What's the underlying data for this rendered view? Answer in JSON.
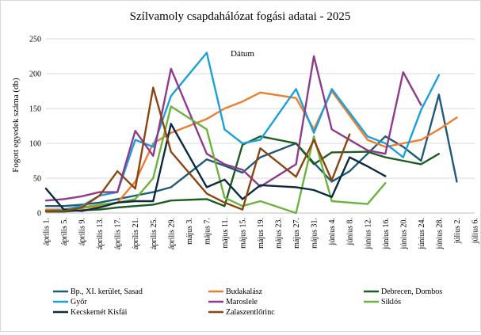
{
  "chart_data": {
    "type": "line",
    "title": "Szílvamoly csapdahálózat fogási adatai - 2025",
    "xlabel": "Dátum",
    "ylabel": "Fogott egyedek száma (db)",
    "ylim": [
      0,
      250
    ],
    "yticks": [
      0,
      50,
      100,
      150,
      200,
      250
    ],
    "grid": true,
    "legend_position": "bottom",
    "x": [
      "április 1.",
      "április 5.",
      "április 9.",
      "április 13.",
      "április 17.",
      "április 21.",
      "április 25.",
      "április 29.",
      "május 3.",
      "május 7.",
      "május 11.",
      "május 15.",
      "május 19.",
      "május 23.",
      "május 27.",
      "május 31.",
      "június 4.",
      "június 8.",
      "június 12.",
      "június 16.",
      "június 20.",
      "június 24.",
      "június 28.",
      "július 2.",
      "július 6."
    ],
    "series": [
      {
        "name": "Bp., XI. kerület, Sasad",
        "color": "#1f5a7a",
        "points": [
          [
            0,
            10
          ],
          [
            1,
            10
          ],
          [
            2,
            12
          ],
          [
            3,
            15
          ],
          [
            4,
            20
          ],
          [
            5,
            25
          ],
          [
            6,
            30
          ],
          [
            7,
            37
          ],
          [
            9,
            77
          ],
          [
            10,
            68
          ],
          [
            11,
            58
          ],
          [
            12,
            80
          ],
          [
            14,
            100
          ],
          [
            15,
            72
          ],
          [
            16,
            45
          ],
          [
            17,
            60
          ],
          [
            19,
            110
          ],
          [
            20,
            95
          ],
          [
            21,
            75
          ],
          [
            22,
            170
          ],
          [
            23,
            45
          ]
        ]
      },
      {
        "name": "Budakalász",
        "color": "#ed7d31",
        "points": [
          [
            0,
            5
          ],
          [
            1,
            5
          ],
          [
            2,
            7
          ],
          [
            3,
            10
          ],
          [
            4,
            15
          ],
          [
            5,
            45
          ],
          [
            6,
            100
          ],
          [
            7,
            115
          ],
          [
            9,
            135
          ],
          [
            10,
            150
          ],
          [
            11,
            160
          ],
          [
            12,
            173
          ],
          [
            14,
            165
          ],
          [
            15,
            120
          ],
          [
            16,
            175
          ],
          [
            18,
            105
          ],
          [
            19,
            95
          ],
          [
            20,
            100
          ],
          [
            21,
            105
          ],
          [
            22,
            120
          ],
          [
            23,
            137
          ]
        ]
      },
      {
        "name": "Debrecen, Dombos",
        "color": "#1b5e20",
        "points": [
          [
            0,
            2
          ],
          [
            1,
            2
          ],
          [
            2,
            4
          ],
          [
            3,
            5
          ],
          [
            4,
            8
          ],
          [
            5,
            10
          ],
          [
            6,
            12
          ],
          [
            7,
            18
          ],
          [
            9,
            20
          ],
          [
            10,
            10
          ],
          [
            11,
            98
          ],
          [
            12,
            110
          ],
          [
            14,
            100
          ],
          [
            15,
            70
          ],
          [
            16,
            87
          ],
          [
            18,
            88
          ],
          [
            19,
            80
          ],
          [
            20,
            75
          ],
          [
            21,
            70
          ],
          [
            22,
            85
          ]
        ]
      },
      {
        "name": "Győr",
        "color": "#1ba1d9",
        "points": [
          [
            0,
            3
          ],
          [
            1,
            5
          ],
          [
            2,
            10
          ],
          [
            3,
            25
          ],
          [
            4,
            30
          ],
          [
            5,
            105
          ],
          [
            6,
            95
          ],
          [
            7,
            168
          ],
          [
            9,
            230
          ],
          [
            10,
            120
          ],
          [
            11,
            100
          ],
          [
            12,
            105
          ],
          [
            14,
            178
          ],
          [
            15,
            115
          ],
          [
            16,
            178
          ],
          [
            18,
            110
          ],
          [
            19,
            100
          ],
          [
            20,
            80
          ],
          [
            21,
            148
          ],
          [
            22,
            198
          ]
        ]
      },
      {
        "name": "Maroslele",
        "color": "#8e3b8e",
        "points": [
          [
            0,
            18
          ],
          [
            1,
            20
          ],
          [
            2,
            24
          ],
          [
            3,
            30
          ],
          [
            4,
            30
          ],
          [
            5,
            118
          ],
          [
            6,
            82
          ],
          [
            7,
            207
          ],
          [
            9,
            85
          ],
          [
            10,
            70
          ],
          [
            11,
            62
          ],
          [
            12,
            38
          ],
          [
            14,
            70
          ],
          [
            15,
            225
          ],
          [
            16,
            120
          ],
          [
            18,
            90
          ],
          [
            19,
            85
          ],
          [
            20,
            202
          ],
          [
            21,
            155
          ]
        ]
      },
      {
        "name": "Siklós",
        "color": "#6cb33e",
        "points": [
          [
            0,
            3
          ],
          [
            1,
            4
          ],
          [
            2,
            8
          ],
          [
            3,
            12
          ],
          [
            4,
            15
          ],
          [
            5,
            20
          ],
          [
            6,
            50
          ],
          [
            7,
            153
          ],
          [
            9,
            120
          ],
          [
            10,
            22
          ],
          [
            11,
            10
          ],
          [
            12,
            17
          ],
          [
            14,
            0
          ],
          [
            15,
            110
          ],
          [
            16,
            17
          ],
          [
            18,
            13
          ],
          [
            19,
            43
          ]
        ]
      },
      {
        "name": "Kecskemét Kisfái",
        "color": "#0d2b3e",
        "points": [
          [
            0,
            35
          ],
          [
            1,
            5
          ],
          [
            2,
            3
          ],
          [
            3,
            8
          ],
          [
            4,
            15
          ],
          [
            5,
            17
          ],
          [
            6,
            17
          ],
          [
            7,
            128
          ],
          [
            9,
            37
          ],
          [
            10,
            48
          ],
          [
            11,
            20
          ],
          [
            12,
            40
          ],
          [
            14,
            37
          ],
          [
            15,
            33
          ],
          [
            16,
            23
          ],
          [
            17,
            80
          ],
          [
            18,
            67
          ],
          [
            19,
            53
          ]
        ]
      },
      {
        "name": "Zalaszentlőrinc",
        "color": "#8b4513",
        "points": [
          [
            0,
            3
          ],
          [
            1,
            3
          ],
          [
            2,
            8
          ],
          [
            3,
            25
          ],
          [
            4,
            60
          ],
          [
            5,
            35
          ],
          [
            6,
            180
          ],
          [
            7,
            88
          ],
          [
            9,
            28
          ],
          [
            10,
            15
          ],
          [
            11,
            5
          ],
          [
            12,
            93
          ],
          [
            14,
            52
          ],
          [
            15,
            105
          ],
          [
            16,
            47
          ],
          [
            17,
            113
          ]
        ]
      }
    ]
  }
}
